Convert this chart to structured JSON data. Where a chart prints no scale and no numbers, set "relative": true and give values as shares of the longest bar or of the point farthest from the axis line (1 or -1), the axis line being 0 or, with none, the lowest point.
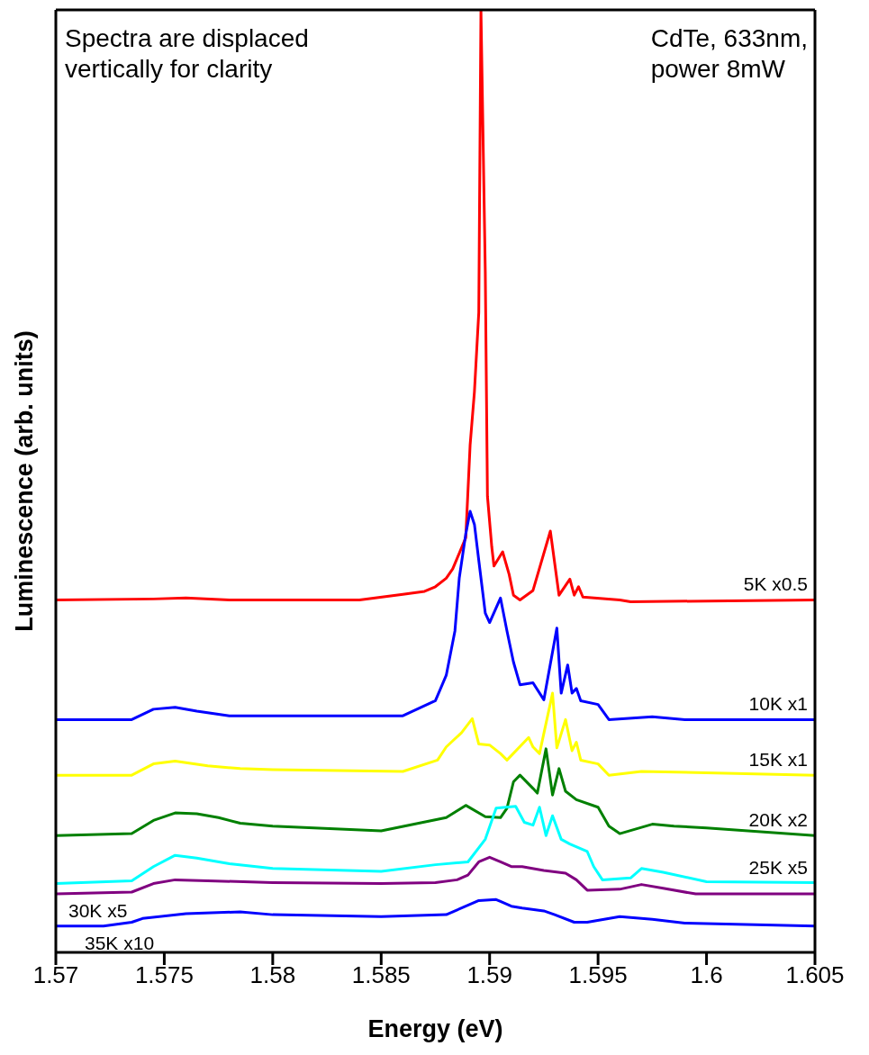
{
  "chart_data": {
    "type": "line",
    "relative": true,
    "xlabel": "Energy (eV)",
    "ylabel": "Luminescence (arb. units)",
    "xlim": [
      1.57,
      1.605
    ],
    "xticks": [
      1.57,
      1.575,
      1.58,
      1.585,
      1.59,
      1.595,
      1.6,
      1.605
    ],
    "marker": "none",
    "line_style": "solid",
    "series": [
      {
        "name": "5K x0.5",
        "color": "#ff0000",
        "x": [
          1.57,
          1.5745,
          1.576,
          1.578,
          1.584,
          1.586,
          1.587,
          1.5875,
          1.588,
          1.5883,
          1.5889,
          1.5891,
          1.5893,
          1.5895,
          1.5896,
          1.5898,
          1.5899,
          1.5901,
          1.5902,
          1.5906,
          1.5909,
          1.5911,
          1.5914,
          1.592,
          1.5928,
          1.5932,
          1.5937,
          1.5939,
          1.5941,
          1.5943,
          1.596,
          1.5965,
          1.605
        ],
        "values": [
          0.374,
          0.375,
          0.376,
          0.374,
          0.374,
          0.38,
          0.383,
          0.388,
          0.397,
          0.407,
          0.44,
          0.538,
          0.595,
          0.679,
          1.0,
          0.722,
          0.484,
          0.43,
          0.41,
          0.425,
          0.401,
          0.379,
          0.374,
          0.384,
          0.447,
          0.379,
          0.396,
          0.379,
          0.388,
          0.377,
          0.374,
          0.372,
          0.374
        ]
      },
      {
        "name": "10K x1",
        "color": "#0000ff",
        "x": [
          1.57,
          1.5735,
          1.5745,
          1.5755,
          1.5765,
          1.578,
          1.586,
          1.5875,
          1.588,
          1.5884,
          1.5886,
          1.5889,
          1.5891,
          1.5893,
          1.5895,
          1.5898,
          1.59,
          1.5905,
          1.5908,
          1.5911,
          1.5914,
          1.592,
          1.5925,
          1.5931,
          1.5933,
          1.5936,
          1.5938,
          1.594,
          1.5942,
          1.595,
          1.5955,
          1.5975,
          1.599,
          1.605
        ],
        "values": [
          0.247,
          0.247,
          0.258,
          0.26,
          0.256,
          0.251,
          0.251,
          0.267,
          0.294,
          0.341,
          0.397,
          0.444,
          0.468,
          0.454,
          0.416,
          0.36,
          0.35,
          0.376,
          0.341,
          0.308,
          0.284,
          0.286,
          0.268,
          0.344,
          0.275,
          0.305,
          0.275,
          0.28,
          0.267,
          0.263,
          0.247,
          0.25,
          0.247,
          0.247
        ]
      },
      {
        "name": "15K x1",
        "color": "#ffff00",
        "x": [
          1.57,
          1.5735,
          1.5745,
          1.5755,
          1.577,
          1.5785,
          1.58,
          1.586,
          1.5876,
          1.588,
          1.5887,
          1.5892,
          1.5895,
          1.59,
          1.5905,
          1.5908,
          1.5918,
          1.592,
          1.5923,
          1.5929,
          1.5931,
          1.5935,
          1.5938,
          1.594,
          1.5942,
          1.595,
          1.5955,
          1.597,
          1.605
        ],
        "values": [
          0.188,
          0.188,
          0.2,
          0.203,
          0.198,
          0.195,
          0.194,
          0.192,
          0.204,
          0.218,
          0.233,
          0.248,
          0.221,
          0.22,
          0.211,
          0.204,
          0.228,
          0.218,
          0.211,
          0.275,
          0.217,
          0.247,
          0.214,
          0.223,
          0.204,
          0.2,
          0.188,
          0.192,
          0.188
        ]
      },
      {
        "name": "20K x2",
        "color": "#008000",
        "x": [
          1.57,
          1.5735,
          1.5745,
          1.5755,
          1.5765,
          1.5775,
          1.5785,
          1.58,
          1.585,
          1.588,
          1.5889,
          1.5898,
          1.5905,
          1.5908,
          1.5911,
          1.5914,
          1.592,
          1.5922,
          1.5926,
          1.5929,
          1.5932,
          1.5935,
          1.594,
          1.595,
          1.5955,
          1.596,
          1.5975,
          1.5985,
          1.6,
          1.605
        ],
        "values": [
          0.124,
          0.126,
          0.14,
          0.148,
          0.147,
          0.143,
          0.137,
          0.134,
          0.129,
          0.143,
          0.156,
          0.144,
          0.143,
          0.153,
          0.181,
          0.188,
          0.174,
          0.169,
          0.216,
          0.167,
          0.195,
          0.171,
          0.162,
          0.154,
          0.134,
          0.126,
          0.136,
          0.134,
          0.132,
          0.124
        ]
      },
      {
        "name": "25K x5",
        "color": "#00ffff",
        "x": [
          1.57,
          1.5735,
          1.5745,
          1.5755,
          1.5765,
          1.578,
          1.58,
          1.585,
          1.5875,
          1.589,
          1.5898,
          1.5903,
          1.5912,
          1.5916,
          1.592,
          1.5923,
          1.5926,
          1.5929,
          1.5933,
          1.5937,
          1.5945,
          1.5948,
          1.5952,
          1.5965,
          1.597,
          1.598,
          1.6,
          1.605
        ],
        "values": [
          0.073,
          0.076,
          0.091,
          0.103,
          0.1,
          0.094,
          0.089,
          0.086,
          0.093,
          0.096,
          0.12,
          0.153,
          0.155,
          0.138,
          0.135,
          0.154,
          0.124,
          0.145,
          0.12,
          0.115,
          0.107,
          0.091,
          0.077,
          0.079,
          0.089,
          0.085,
          0.075,
          0.074
        ]
      },
      {
        "name": "30K x5",
        "color": "#800080",
        "x": [
          1.57,
          1.5735,
          1.5745,
          1.5755,
          1.577,
          1.58,
          1.585,
          1.5875,
          1.5885,
          1.589,
          1.5895,
          1.59,
          1.5905,
          1.591,
          1.5915,
          1.5925,
          1.5935,
          1.594,
          1.5945,
          1.596,
          1.597,
          1.598,
          1.5995,
          1.605
        ],
        "values": [
          0.062,
          0.064,
          0.073,
          0.077,
          0.076,
          0.074,
          0.073,
          0.074,
          0.077,
          0.082,
          0.096,
          0.101,
          0.096,
          0.091,
          0.091,
          0.087,
          0.084,
          0.077,
          0.066,
          0.067,
          0.072,
          0.068,
          0.062,
          0.062
        ]
      },
      {
        "name": "35K x10",
        "color": "#0000ff",
        "x": [
          1.57,
          1.5722,
          1.5735,
          1.574,
          1.576,
          1.5785,
          1.58,
          1.585,
          1.588,
          1.5895,
          1.5903,
          1.5905,
          1.591,
          1.5915,
          1.5925,
          1.593,
          1.5939,
          1.5945,
          1.596,
          1.5975,
          1.599,
          1.605
        ],
        "values": [
          0.028,
          0.028,
          0.032,
          0.036,
          0.041,
          0.043,
          0.04,
          0.038,
          0.04,
          0.055,
          0.056,
          0.054,
          0.049,
          0.047,
          0.044,
          0.04,
          0.032,
          0.032,
          0.038,
          0.035,
          0.031,
          0.028
        ]
      }
    ],
    "annotations": [
      "Spectra are displaced\nvertically for clarity",
      "CdTe, 633nm,\npower 8mW"
    ]
  }
}
